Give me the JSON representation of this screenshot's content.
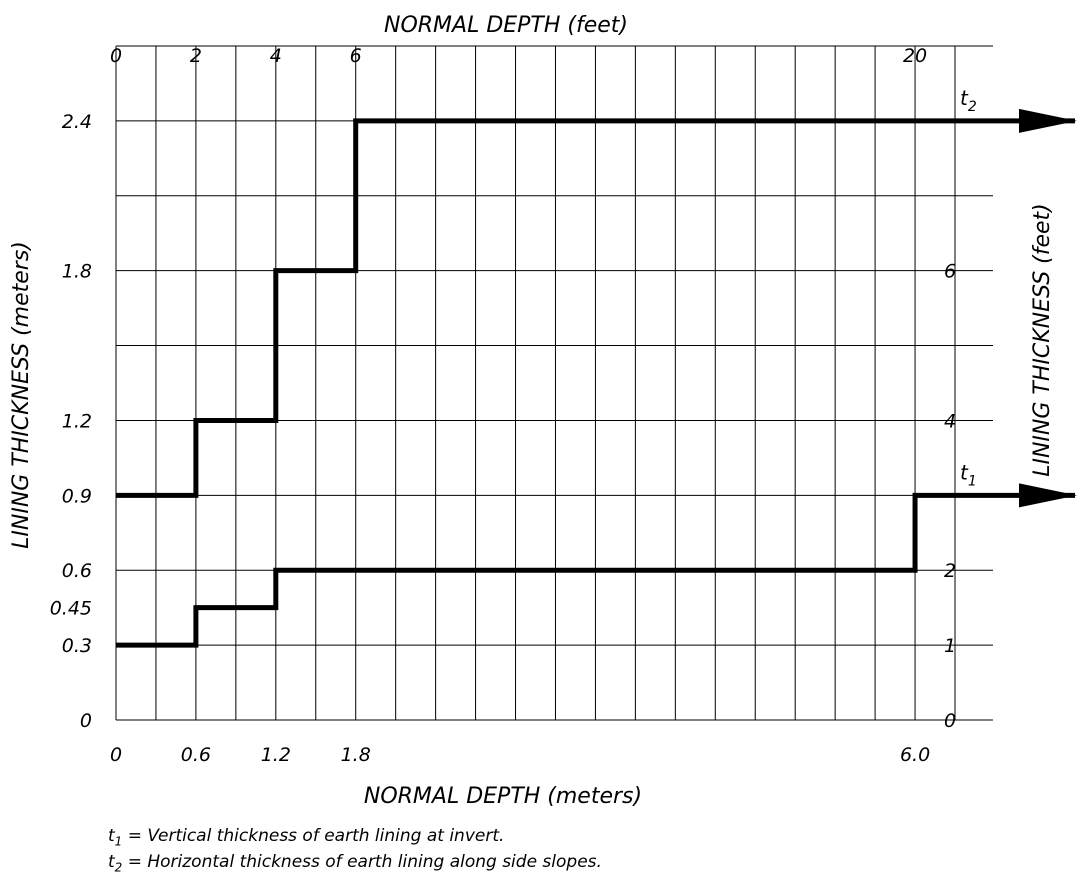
{
  "chart_data": {
    "type": "line",
    "step": true,
    "xlabel_bottom": "NORMAL DEPTH (meters)",
    "xlabel_top": "NORMAL DEPTH (feet)",
    "ylabel_left": "LINING THICKNESS (meters)",
    "ylabel_right": "LINING THICKNESS (feet)",
    "x_ticks_bottom": [
      {
        "value": 0,
        "label": "0"
      },
      {
        "value": 0.6,
        "label": "0.6"
      },
      {
        "value": 1.2,
        "label": "1.2"
      },
      {
        "value": 1.8,
        "label": "1.8"
      },
      {
        "value": 6.0,
        "label": "6.0"
      }
    ],
    "x_ticks_top": [
      {
        "value": 0,
        "label": "0"
      },
      {
        "value": 0.6,
        "label": "2"
      },
      {
        "value": 1.2,
        "label": "4"
      },
      {
        "value": 1.8,
        "label": "6"
      },
      {
        "value": 6.0,
        "label": "20"
      }
    ],
    "y_ticks_left": [
      {
        "value": 0,
        "label": "0"
      },
      {
        "value": 0.3,
        "label": "0.3"
      },
      {
        "value": 0.45,
        "label": "0.45"
      },
      {
        "value": 0.6,
        "label": "0.6"
      },
      {
        "value": 0.9,
        "label": "0.9"
      },
      {
        "value": 1.2,
        "label": "1.2"
      },
      {
        "value": 1.8,
        "label": "1.8"
      },
      {
        "value": 2.4,
        "label": "2.4"
      }
    ],
    "y_ticks_right": [
      {
        "value": 0,
        "label": "0"
      },
      {
        "value": 0.3,
        "label": "1"
      },
      {
        "value": 0.6,
        "label": "2"
      },
      {
        "value": 1.2,
        "label": "4"
      },
      {
        "value": 1.8,
        "label": "6"
      }
    ],
    "xlim": [
      0,
      6.3
    ],
    "ylim": [
      0,
      2.7
    ],
    "grid_x_step": 0.3,
    "grid_y_values": [
      0,
      0.3,
      0.6,
      0.9,
      1.2,
      1.5,
      1.8,
      2.1,
      2.4,
      2.7
    ],
    "grid": true,
    "series": [
      {
        "name": "t1",
        "label_main": "t",
        "label_sub": "1",
        "points": [
          [
            0,
            0.3
          ],
          [
            0.6,
            0.3
          ],
          [
            0.6,
            0.45
          ],
          [
            1.2,
            0.45
          ],
          [
            1.2,
            0.6
          ],
          [
            6.0,
            0.6
          ],
          [
            6.0,
            0.9
          ],
          [
            6.3,
            0.9
          ]
        ],
        "arrow": true
      },
      {
        "name": "t2",
        "label_main": "t",
        "label_sub": "2",
        "points": [
          [
            0,
            0.9
          ],
          [
            0.6,
            0.9
          ],
          [
            0.6,
            1.2
          ],
          [
            1.2,
            1.2
          ],
          [
            1.2,
            1.8
          ],
          [
            1.8,
            1.8
          ],
          [
            1.8,
            2.4
          ],
          [
            6.3,
            2.4
          ]
        ],
        "arrow": true
      }
    ]
  },
  "notes": [
    {
      "sym": "t",
      "sub": "1",
      "text": "= Vertical thickness of earth lining at invert."
    },
    {
      "sym": "t",
      "sub": "2",
      "text": "= Horizontal thickness of earth lining along side slopes."
    }
  ]
}
